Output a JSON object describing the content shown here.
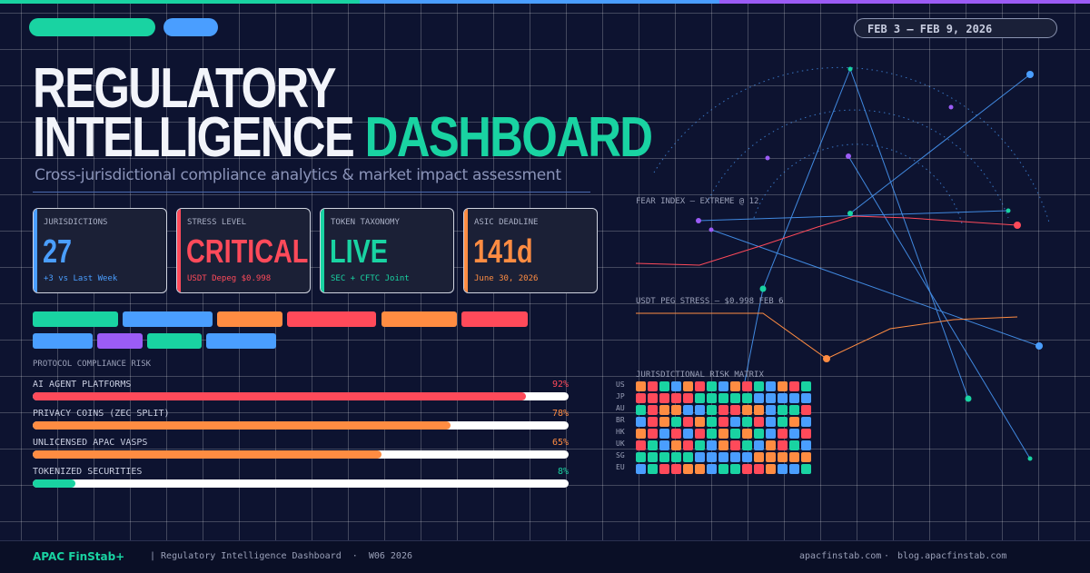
{
  "header": {
    "date_range": "FEB 3 – FEB 9, 2026",
    "title_line1": "REGULATORY",
    "title_line2": "INTELLIGENCE",
    "title_accent": "DASHBOARD",
    "subtitle": "Cross-jurisdictional compliance analytics & market impact assessment"
  },
  "cards": [
    {
      "label": "JURISDICTIONS",
      "value": "27",
      "note": "+3 vs Last Week",
      "color": "#4a9eff"
    },
    {
      "label": "STRESS LEVEL",
      "value": "CRITICAL",
      "note": "USDT Depeg $0.998",
      "color": "#ff4a5a"
    },
    {
      "label": "TOKEN TAXONOMY",
      "value": "LIVE",
      "note": "SEC + CFTC Joint",
      "color": "#19d3a2"
    },
    {
      "label": "ASIC DEADLINE",
      "value": "141d",
      "note": "June 30, 2026",
      "color": "#ff8c42"
    }
  ],
  "chart_data": {
    "type": "bar",
    "orientation": "horizontal",
    "title": "PROTOCOL COMPLIANCE RISK",
    "categories": [
      "AI AGENT PLATFORMS",
      "PRIVACY COINS (ZEC SPLIT)",
      "UNLICENSED APAC VASPS",
      "TOKENIZED SECURITIES"
    ],
    "values": [
      92,
      78,
      65,
      8
    ],
    "value_labels": [
      "92%",
      "78%",
      "65%",
      "8%"
    ],
    "colors": [
      "#ff4a5a",
      "#ff8c42",
      "#ff8c42",
      "#19d3a2"
    ],
    "xlim": [
      0,
      100
    ]
  },
  "panel": {
    "fear_label": "FEAR INDEX — EXTREME @ 12",
    "peg_label": "USDT PEG STRESS — $0.998 FEB 6",
    "matrix_title": "JURISDICTIONAL RISK MATRIX",
    "matrix_rows": [
      "US",
      "JP",
      "AU",
      "BR",
      "HK",
      "UK",
      "SG",
      "EU"
    ]
  },
  "footer": {
    "brand": "APAC FinStab+",
    "tagline": "| Regulatory Intelligence Dashboard  ·  W06 2026",
    "links": [
      "apacfinstab.com",
      "blog.apacfinstab.com"
    ],
    "separator": "·"
  }
}
